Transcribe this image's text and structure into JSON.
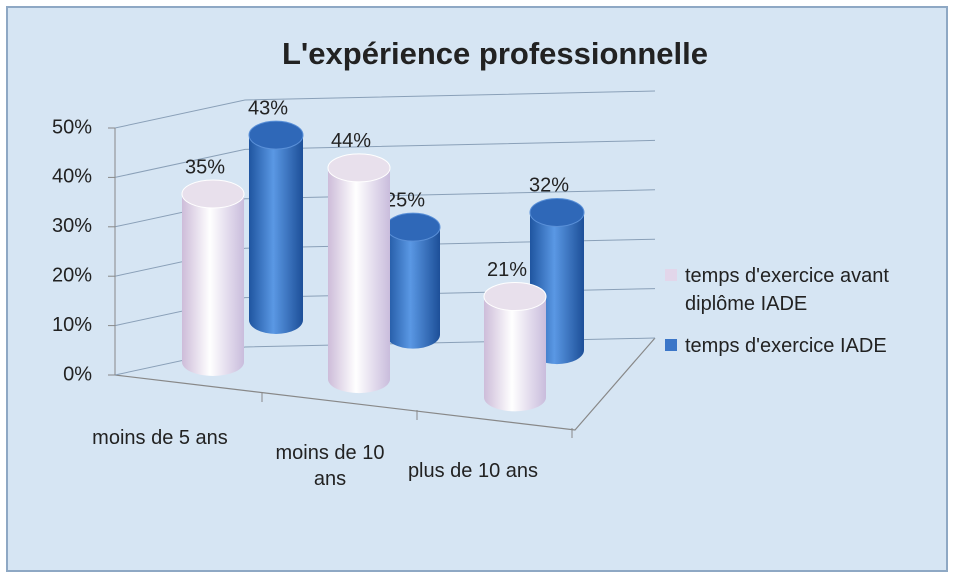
{
  "chart_data": {
    "type": "bar3d",
    "title": "L'expérience professionnelle",
    "categories": [
      "moins de 5 ans",
      "moins de 10 ans",
      "plus de 10 ans"
    ],
    "series": [
      {
        "name": "temps d'exercice avant diplôme IADE",
        "color": "#e2d6ea",
        "values": [
          35,
          44,
          21
        ],
        "value_labels": [
          "35%",
          "44%",
          "21%"
        ]
      },
      {
        "name": "temps d'exercice IADE",
        "color": "#3b76c8",
        "values": [
          43,
          25,
          32
        ],
        "value_labels": [
          "43%",
          "25%",
          "32%"
        ]
      }
    ],
    "ylim": [
      0,
      50
    ],
    "yticks": [
      {
        "value": 0,
        "label": "0%"
      },
      {
        "value": 10,
        "label": "10%"
      },
      {
        "value": 20,
        "label": "20%"
      },
      {
        "value": 30,
        "label": "30%"
      },
      {
        "value": 40,
        "label": "40%"
      },
      {
        "value": 50,
        "label": "50%"
      }
    ],
    "grid": true,
    "legend": "right"
  }
}
